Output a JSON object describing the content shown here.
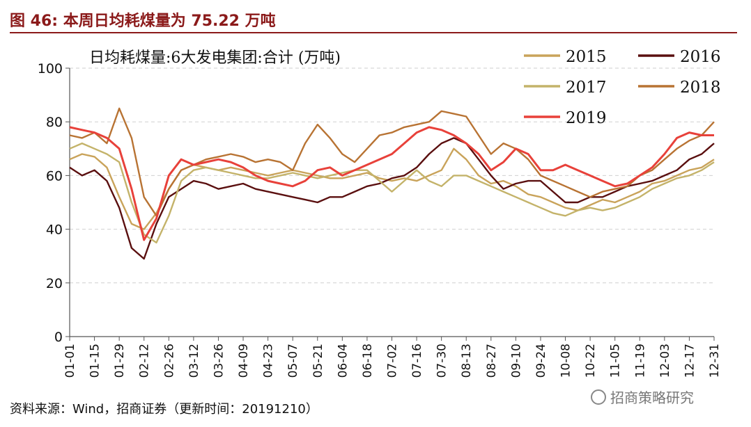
{
  "figure": {
    "title": "图 46:  本周日均耗煤量为 75.22 万吨",
    "source": "资料来源：Wind，招商证券（更新时间：20191210）",
    "watermark": "招商策略研究",
    "accent_color": "#8b1a1a"
  },
  "chart_data": {
    "type": "line",
    "title": "日均耗煤量:6大发电集团:合计 (万吨)",
    "xlabel": "",
    "ylabel": "",
    "ylim": [
      0,
      100
    ],
    "yticks": [
      0,
      20,
      40,
      60,
      80,
      100
    ],
    "grid": true,
    "legend_position": "top-right",
    "x_ticks": [
      "01-01",
      "01-15",
      "01-29",
      "02-12",
      "02-26",
      "03-12",
      "03-26",
      "04-09",
      "04-23",
      "05-07",
      "05-21",
      "06-04",
      "06-18",
      "07-02",
      "07-16",
      "07-30",
      "08-13",
      "08-27",
      "09-10",
      "09-24",
      "10-08",
      "10-22",
      "11-05",
      "11-19",
      "12-03",
      "12-17",
      "12-31"
    ],
    "x_tick_days": [
      1,
      15,
      29,
      43,
      57,
      71,
      85,
      99,
      113,
      127,
      141,
      155,
      169,
      183,
      197,
      211,
      225,
      239,
      253,
      267,
      281,
      295,
      309,
      323,
      337,
      351,
      365
    ],
    "series": [
      {
        "name": "2015",
        "color": "#c9a35a",
        "x": [
          1,
          8,
          15,
          22,
          29,
          36,
          43,
          50,
          57,
          64,
          71,
          78,
          85,
          92,
          99,
          106,
          113,
          120,
          127,
          134,
          141,
          148,
          155,
          162,
          169,
          176,
          183,
          190,
          197,
          204,
          211,
          218,
          225,
          232,
          239,
          246,
          253,
          260,
          267,
          274,
          281,
          288,
          295,
          302,
          309,
          316,
          323,
          330,
          337,
          344,
          351,
          358,
          365
        ],
        "values": [
          66,
          68,
          67,
          63,
          52,
          42,
          40,
          46,
          55,
          62,
          64,
          63,
          62,
          63,
          62,
          61,
          60,
          61,
          62,
          61,
          60,
          59,
          59,
          60,
          61,
          59,
          58,
          59,
          58,
          60,
          62,
          70,
          66,
          60,
          57,
          58,
          56,
          53,
          52,
          50,
          48,
          47,
          49,
          51,
          50,
          52,
          54,
          57,
          58,
          60,
          62,
          63,
          66
        ]
      },
      {
        "name": "2016",
        "color": "#5a0f0f",
        "x": [
          1,
          8,
          15,
          22,
          29,
          36,
          43,
          50,
          57,
          64,
          71,
          78,
          85,
          92,
          99,
          106,
          113,
          120,
          127,
          134,
          141,
          148,
          155,
          162,
          169,
          176,
          183,
          190,
          197,
          204,
          211,
          218,
          225,
          232,
          239,
          246,
          253,
          260,
          267,
          274,
          281,
          288,
          295,
          302,
          309,
          316,
          323,
          330,
          337,
          344,
          351,
          358,
          365
        ],
        "values": [
          63,
          60,
          62,
          58,
          48,
          33,
          29,
          42,
          52,
          55,
          58,
          57,
          55,
          56,
          57,
          55,
          54,
          53,
          52,
          51,
          50,
          52,
          52,
          54,
          56,
          57,
          59,
          60,
          63,
          68,
          72,
          74,
          72,
          66,
          60,
          55,
          57,
          58,
          58,
          54,
          50,
          50,
          52,
          52,
          54,
          56,
          57,
          58,
          60,
          62,
          66,
          68,
          72
        ]
      },
      {
        "name": "2017",
        "color": "#c4b36a",
        "x": [
          1,
          8,
          15,
          22,
          29,
          36,
          43,
          50,
          57,
          64,
          71,
          78,
          85,
          92,
          99,
          106,
          113,
          120,
          127,
          134,
          141,
          148,
          155,
          162,
          169,
          176,
          183,
          190,
          197,
          204,
          211,
          218,
          225,
          232,
          239,
          246,
          253,
          260,
          267,
          274,
          281,
          288,
          295,
          302,
          309,
          316,
          323,
          330,
          337,
          344,
          351,
          358,
          365
        ],
        "values": [
          70,
          72,
          70,
          68,
          65,
          50,
          38,
          35,
          45,
          58,
          62,
          63,
          62,
          61,
          60,
          59,
          59,
          60,
          61,
          60,
          59,
          60,
          61,
          62,
          62,
          58,
          54,
          58,
          62,
          58,
          56,
          60,
          60,
          58,
          56,
          54,
          52,
          50,
          48,
          46,
          45,
          47,
          48,
          47,
          48,
          50,
          52,
          55,
          57,
          59,
          60,
          62,
          65
        ]
      },
      {
        "name": "2018",
        "color": "#b87333",
        "x": [
          1,
          8,
          15,
          22,
          29,
          36,
          43,
          50,
          57,
          64,
          71,
          78,
          85,
          92,
          99,
          106,
          113,
          120,
          127,
          134,
          141,
          148,
          155,
          162,
          169,
          176,
          183,
          190,
          197,
          204,
          211,
          218,
          225,
          232,
          239,
          246,
          253,
          260,
          267,
          274,
          281,
          288,
          295,
          302,
          309,
          316,
          323,
          330,
          337,
          344,
          351,
          358,
          365
        ],
        "values": [
          75,
          74,
          76,
          72,
          85,
          74,
          52,
          45,
          55,
          62,
          64,
          66,
          67,
          68,
          67,
          65,
          66,
          65,
          62,
          72,
          79,
          74,
          68,
          65,
          70,
          75,
          76,
          78,
          79,
          80,
          84,
          83,
          82,
          75,
          68,
          72,
          70,
          66,
          60,
          58,
          56,
          54,
          52,
          54,
          55,
          56,
          60,
          62,
          66,
          70,
          73,
          75,
          80
        ]
      },
      {
        "name": "2019",
        "color": "#e8413a",
        "x": [
          1,
          8,
          15,
          22,
          29,
          36,
          43,
          50,
          57,
          64,
          71,
          78,
          85,
          92,
          99,
          106,
          113,
          120,
          127,
          134,
          141,
          148,
          155,
          162,
          169,
          176,
          183,
          190,
          197,
          204,
          211,
          218,
          225,
          232,
          239,
          246,
          253,
          260,
          267,
          274,
          281,
          288,
          295,
          302,
          309,
          316,
          323,
          330,
          337,
          344,
          351,
          358,
          365
        ],
        "values": [
          78,
          77,
          76,
          74,
          70,
          55,
          36,
          44,
          60,
          66,
          64,
          65,
          66,
          65,
          63,
          60,
          58,
          57,
          56,
          58,
          62,
          63,
          60,
          62,
          64,
          66,
          68,
          72,
          76,
          78,
          77,
          75,
          72,
          68,
          62,
          65,
          70,
          68,
          62,
          62,
          64,
          62,
          60,
          58,
          56,
          57,
          60,
          63,
          68,
          74,
          76,
          75,
          75
        ]
      }
    ]
  }
}
